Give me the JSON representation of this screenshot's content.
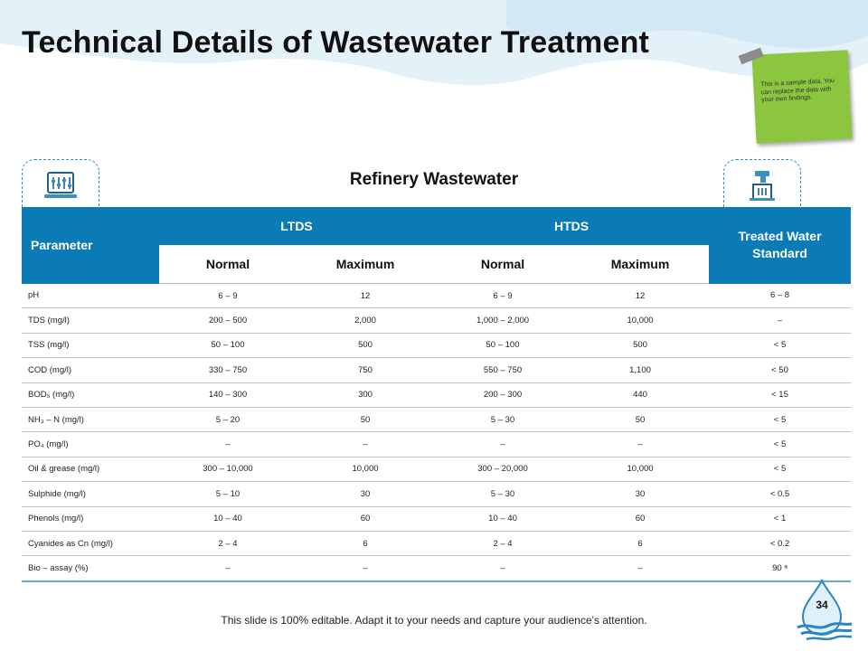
{
  "slide": {
    "title": "Technical Details of Wastewater Treatment",
    "note": "This is a sample data. You can replace the data with your own findings.",
    "section_heading": "Refinery Wastewater",
    "footer": "This slide is 100% editable. Adapt it to your needs and capture your audience's attention.",
    "page_number": "34",
    "colors": {
      "header_blue": "#0a7bb5",
      "note_green": "#8cc63f",
      "accent": "#3a8fc2"
    },
    "icons": [
      "computer-icon",
      "water-tap-icon",
      "water-drop-icon"
    ]
  },
  "table": {
    "headers": {
      "parameter": "Parameter",
      "ltds": "LTDS",
      "htds": "HTDS",
      "treated": "Treated Water Standard",
      "normal_1": "Normal",
      "maximum_1": "Maximum",
      "normal_2": "Normal",
      "maximum_2": "Maximum"
    },
    "rows": [
      [
        "pH",
        "6 – 9",
        "12",
        "6 – 9",
        "12",
        "6 – 8"
      ],
      [
        "TDS  (mg/l)",
        "200 – 500",
        "2,000",
        "1,000 – 2,000",
        "10,000",
        "–"
      ],
      [
        "TSS  (mg/l)",
        "50 – 100",
        "500",
        "50 – 100",
        "500",
        "< 5"
      ],
      [
        "COD  (mg/l)",
        "330 – 750",
        "750",
        "550 – 750",
        "1,100",
        "< 50"
      ],
      [
        "BOD₅  (mg/l)",
        "140 – 300",
        "300",
        "200 – 300",
        "440",
        "< 15"
      ],
      [
        "NH₃ – N  (mg/l)",
        "5 – 20",
        "50",
        "5 – 30",
        "50",
        "< 5"
      ],
      [
        "PO₄  (mg/l)",
        "–",
        "–",
        "–",
        "–",
        "< 5"
      ],
      [
        "Oil & grease (mg/l)",
        "300 – 10,000",
        "10,000",
        "300 – 20,000",
        "10,000",
        "< 5"
      ],
      [
        "Sulphide  (mg/l)",
        "5 – 10",
        "30",
        "5 – 30",
        "30",
        "< 0.5"
      ],
      [
        "Phenols  (mg/l)",
        "10 – 40",
        "60",
        "10 – 40",
        "60",
        "< 1"
      ],
      [
        "Cyanides as Cn  (mg/l)",
        "2 – 4",
        "6",
        "2 – 4",
        "6",
        "< 0.2"
      ],
      [
        "Bio – assay (%)",
        "–",
        "–",
        "–",
        "–",
        "90 ᵃ"
      ]
    ]
  }
}
